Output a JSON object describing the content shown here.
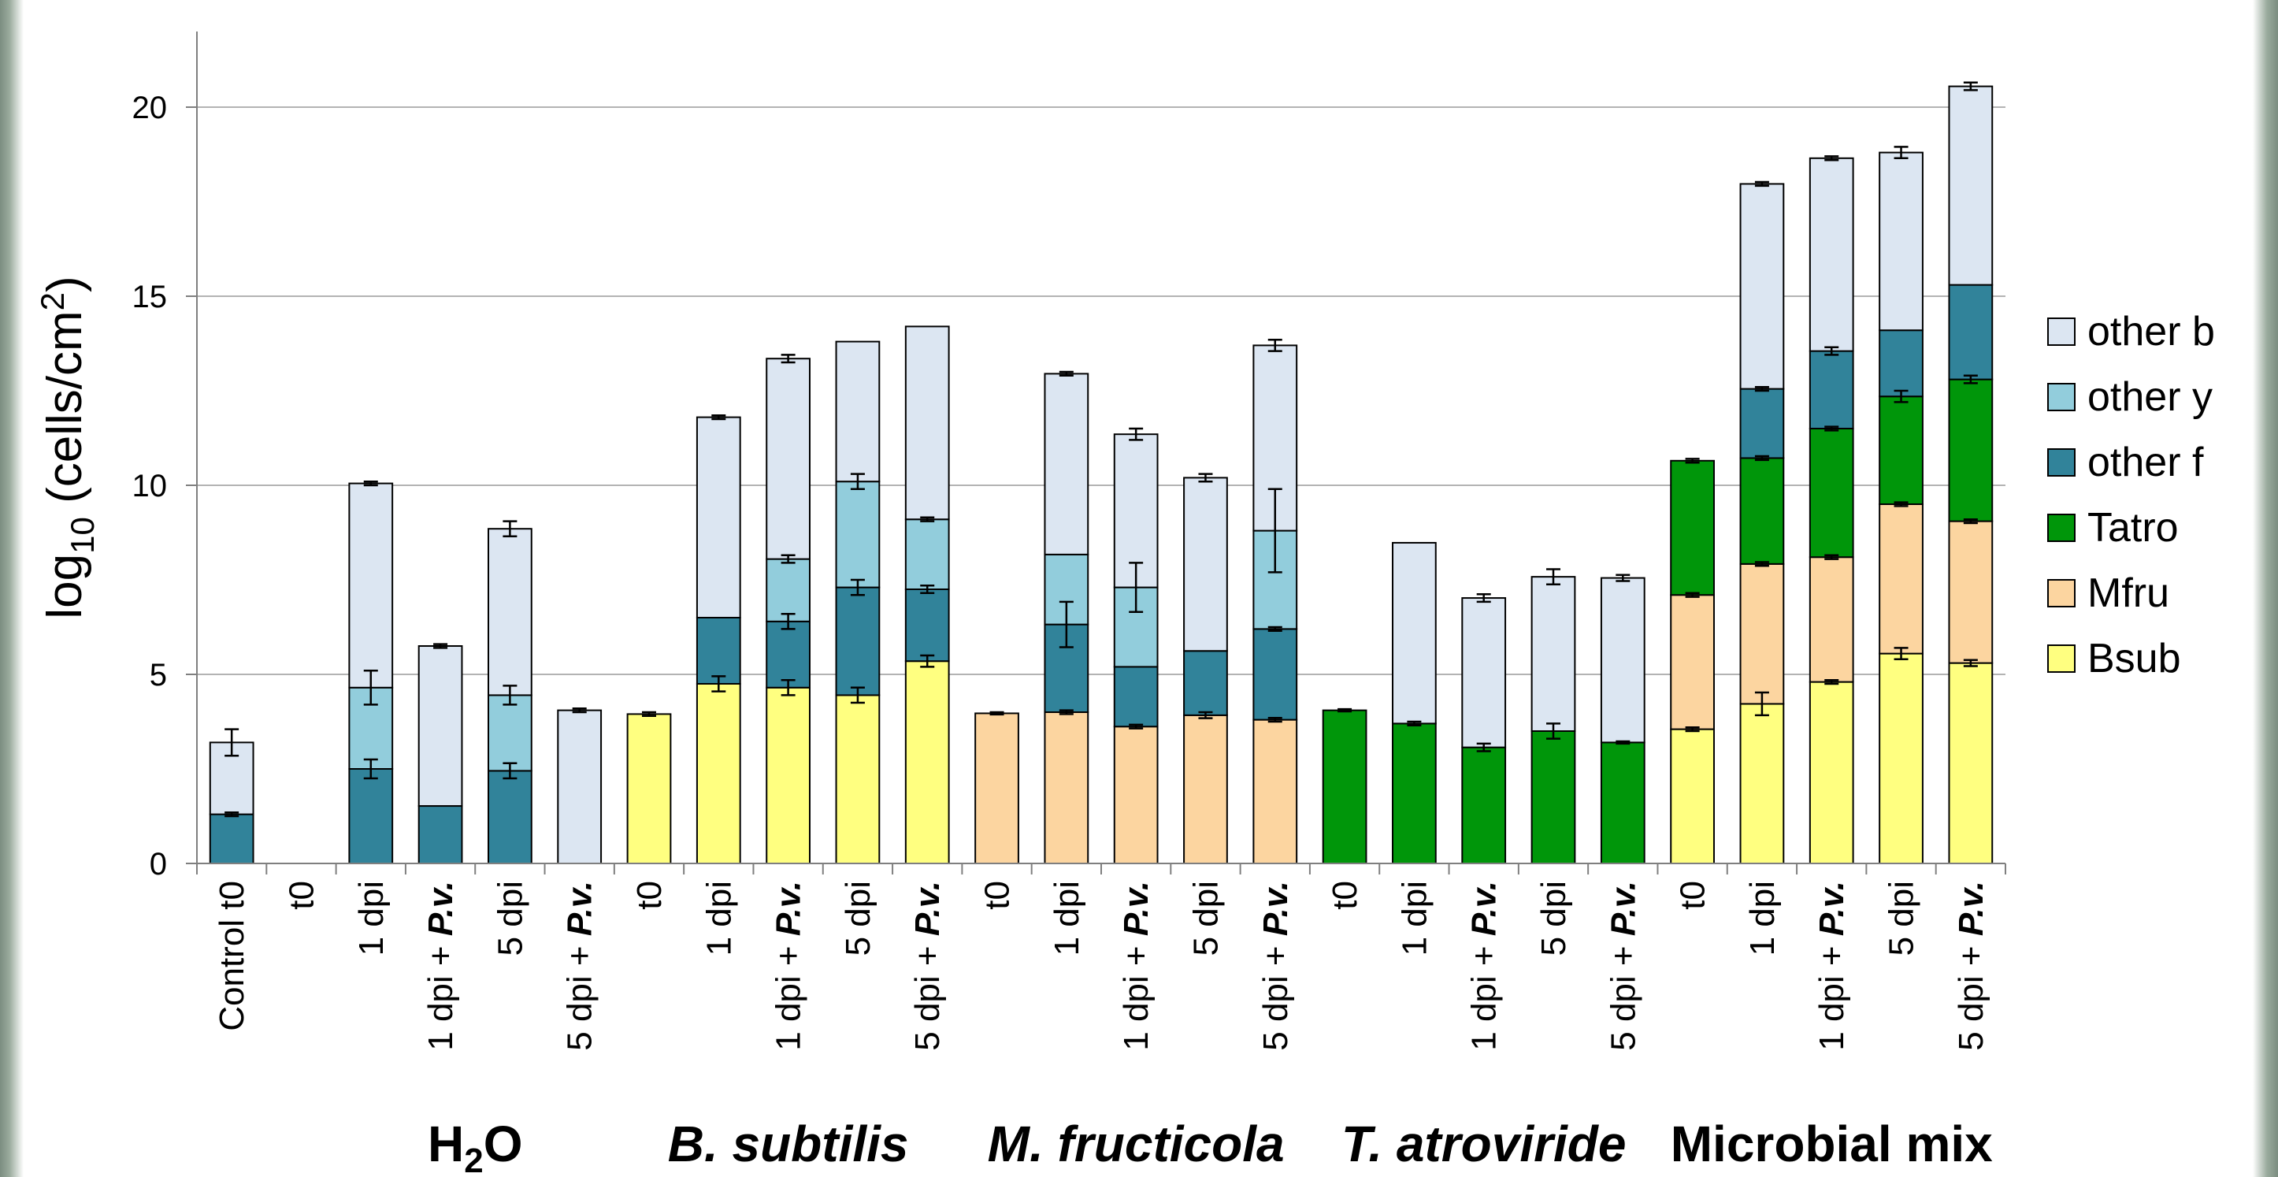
{
  "chart_data": {
    "type": "bar",
    "stacked": true,
    "ylabel": {
      "base": "log",
      "sub": "10",
      "rest": " (cells/cm",
      "sup": "2",
      "end": ")"
    },
    "ylim": [
      0,
      22
    ],
    "yticks": [
      0,
      5,
      10,
      15,
      20
    ],
    "grid": true,
    "legend_position": "right",
    "colors": {
      "Bsub": "#ffff80",
      "Mfru": "#fcd5a0",
      "Tatro": "#00960a",
      "other f": "#31839a",
      "other y": "#92cddc",
      "other b": "#dce6f2"
    },
    "legend": [
      "other b",
      "other y",
      "other f",
      "Tatro",
      "Mfru",
      "Bsub"
    ],
    "stack_order": [
      "Bsub",
      "Mfru",
      "Tatro",
      "other f",
      "other y",
      "other b"
    ],
    "categories": [
      {
        "label": "Control t0",
        "segments": {
          "other f": 1.3,
          "other b": 1.9
        },
        "errors": {
          "other f": 0.05,
          "other b": 0.35
        }
      },
      {
        "label": "t0",
        "segments": {},
        "errors": {}
      },
      {
        "label": "1 dpi",
        "segments": {
          "other f": 2.5,
          "other y": 2.15,
          "other b": 5.4
        },
        "errors": {
          "other f": 0.25,
          "other y": 0.45,
          "other b": 0.05
        }
      },
      {
        "label": "1 dpi + P.v.",
        "segments": {
          "other f": 1.52,
          "other b": 4.23
        },
        "errors": {
          "other b": 0.05
        }
      },
      {
        "label": "5 dpi",
        "segments": {
          "other f": 2.45,
          "other y": 2.0,
          "other b": 4.4
        },
        "errors": {
          "other f": 0.2,
          "other y": 0.25,
          "other b": 0.2
        }
      },
      {
        "label": "5 dpi + P.v.",
        "segments": {
          "other b": 4.05
        },
        "errors": {
          "other b": 0.05
        }
      },
      {
        "label": "t0",
        "segments": {
          "Bsub": 3.95
        },
        "errors": {
          "Bsub": 0.05
        }
      },
      {
        "label": "1 dpi",
        "segments": {
          "Bsub": 4.75,
          "other f": 1.75,
          "other b": 5.3
        },
        "errors": {
          "Bsub": 0.2,
          "other b": 0.05
        }
      },
      {
        "label": "1 dpi + P.v.",
        "segments": {
          "Bsub": 4.65,
          "other f": 1.75,
          "other y": 1.65,
          "other b": 5.3
        },
        "errors": {
          "Bsub": 0.2,
          "other f": 0.2,
          "other y": 0.1,
          "other b": 0.1
        }
      },
      {
        "label": "5 dpi",
        "segments": {
          "Bsub": 4.45,
          "other f": 2.85,
          "other y": 2.8,
          "other b": 3.7
        },
        "errors": {
          "Bsub": 0.2,
          "other f": 0.2,
          "other y": 0.2
        }
      },
      {
        "label": "5 dpi + P.v.",
        "segments": {
          "Bsub": 5.35,
          "other f": 1.9,
          "other y": 1.85,
          "other b": 5.1
        },
        "errors": {
          "Bsub": 0.15,
          "other f": 0.1,
          "other y": 0.05
        }
      },
      {
        "label": "t0",
        "segments": {
          "Mfru": 3.97
        },
        "errors": {
          "Mfru": 0.03
        }
      },
      {
        "label": "1 dpi",
        "segments": {
          "Mfru": 4.0,
          "other f": 2.32,
          "other y": 1.85,
          "other b": 4.78
        },
        "errors": {
          "Mfru": 0.05,
          "other f": 0.6,
          "other b": 0.05
        }
      },
      {
        "label": "1 dpi + P.v.",
        "segments": {
          "Mfru": 3.62,
          "other f": 1.58,
          "other y": 2.1,
          "other b": 4.05
        },
        "errors": {
          "Mfru": 0.05,
          "other y": 0.65,
          "other b": 0.15
        }
      },
      {
        "label": "5 dpi",
        "segments": {
          "Mfru": 3.92,
          "other f": 1.7,
          "other b": 4.58
        },
        "errors": {
          "Mfru": 0.08,
          "other b": 0.1
        }
      },
      {
        "label": "5 dpi + P.v.",
        "segments": {
          "Mfru": 3.8,
          "other f": 2.4,
          "other y": 2.6,
          "other b": 4.9
        },
        "errors": {
          "Mfru": 0.05,
          "other f": 0.05,
          "other y": 1.1,
          "other b": 0.15
        }
      },
      {
        "label": "t0",
        "segments": {
          "Tatro": 4.05
        },
        "errors": {
          "Tatro": 0.03
        }
      },
      {
        "label": "1 dpi",
        "segments": {
          "Tatro": 3.7,
          "other b": 4.78
        },
        "errors": {
          "Tatro": 0.05
        }
      },
      {
        "label": "1 dpi + P.v.",
        "segments": {
          "Tatro": 3.07,
          "other b": 3.95
        },
        "errors": {
          "Tatro": 0.1,
          "other b": 0.1
        }
      },
      {
        "label": "5 dpi",
        "segments": {
          "Tatro": 3.5,
          "other b": 4.08
        },
        "errors": {
          "Tatro": 0.2,
          "other b": 0.2
        }
      },
      {
        "label": "5 dpi + P.v.",
        "segments": {
          "Tatro": 3.2,
          "other b": 4.35
        },
        "errors": {
          "Tatro": 0.03,
          "other b": 0.08
        }
      },
      {
        "label": "t0",
        "segments": {
          "Bsub": 3.55,
          "Mfru": 3.55,
          "Tatro": 3.55
        },
        "errors": {
          "Bsub": 0.05,
          "Mfru": 0.05,
          "Tatro": 0.05
        }
      },
      {
        "label": "1 dpi",
        "segments": {
          "Bsub": 4.22,
          "Mfru": 3.7,
          "Tatro": 2.8,
          "other f": 1.83,
          "other b": 5.42
        },
        "errors": {
          "Bsub": 0.3,
          "Mfru": 0.05,
          "Tatro": 0.05,
          "other f": 0.05,
          "other b": 0.05
        }
      },
      {
        "label": "1 dpi + P.v.",
        "segments": {
          "Bsub": 4.8,
          "Mfru": 3.3,
          "Tatro": 3.4,
          "other f": 2.05,
          "other b": 5.1
        },
        "errors": {
          "Bsub": 0.05,
          "Mfru": 0.05,
          "Tatro": 0.05,
          "other f": 0.1,
          "other b": 0.05
        }
      },
      {
        "label": "5 dpi",
        "segments": {
          "Bsub": 5.55,
          "Mfru": 3.95,
          "Tatro": 2.85,
          "other f": 1.75,
          "other b": 4.7
        },
        "errors": {
          "Bsub": 0.15,
          "Mfru": 0.05,
          "Tatro": 0.15,
          "other b": 0.15
        }
      },
      {
        "label": "5 dpi + P.v.",
        "segments": {
          "Bsub": 5.3,
          "Mfru": 3.75,
          "Tatro": 3.75,
          "other f": 2.5,
          "other b": 5.25
        },
        "errors": {
          "Bsub": 0.08,
          "Mfru": 0.05,
          "Tatro": 0.1,
          "other b": 0.1
        }
      }
    ],
    "groups": [
      {
        "label": "H",
        "sub": "2",
        "after": "O",
        "italic": false,
        "from": 2,
        "to": 5
      },
      {
        "label": "B. subtilis",
        "italic": true,
        "from": 6,
        "to": 10
      },
      {
        "label": "M. fructicola",
        "italic": true,
        "from": 11,
        "to": 15
      },
      {
        "label": "T. atroviride",
        "italic": true,
        "from": 16,
        "to": 20
      },
      {
        "label": "Microbial mix",
        "italic": false,
        "from": 21,
        "to": 25
      }
    ]
  }
}
